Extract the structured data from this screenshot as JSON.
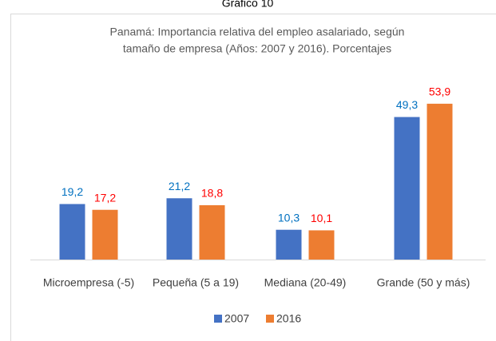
{
  "chart_data": {
    "type": "bar",
    "heading": "Gráfico 10",
    "title": [
      "Panamá: Importancia relativa del empleo asalariado, según",
      "tamaño de empresa (Años: 2007 y 2016). Porcentajes"
    ],
    "categories": [
      "Microempresa (-5)",
      "Pequeña (5 a 19)",
      "Mediana (20-49)",
      "Grande (50 y más)"
    ],
    "series": [
      {
        "name": "2007",
        "color": "#4472c4",
        "label_color": "#0070c0",
        "values": [
          19.2,
          21.2,
          10.3,
          49.3
        ],
        "value_labels": [
          "19,2",
          "21,2",
          "10,3",
          "49,3"
        ]
      },
      {
        "name": "2016",
        "color": "#ed7d31",
        "label_color": "#ff0000",
        "values": [
          17.2,
          18.8,
          10.1,
          53.9
        ],
        "value_labels": [
          "17,2",
          "18,8",
          "10,1",
          "53,9"
        ]
      }
    ],
    "legend": "bottom"
  }
}
